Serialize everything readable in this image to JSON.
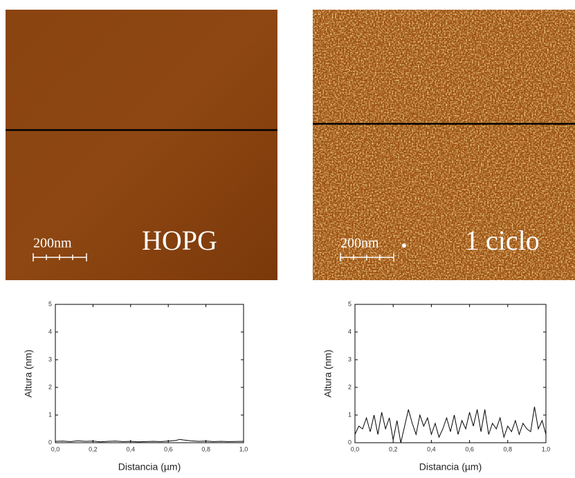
{
  "images": [
    {
      "scale_bar": "200nm",
      "label": "HOPG"
    },
    {
      "scale_bar": "200nm",
      "label": "1 ciclo"
    }
  ],
  "chart_data": [
    {
      "type": "line",
      "xlabel": "Distancia (µm)",
      "ylabel": "Altura (nm)",
      "xlim": [
        0,
        1
      ],
      "ylim": [
        0,
        5
      ],
      "xticks": [
        {
          "value": 0,
          "label": "0,0"
        },
        {
          "value": 0.2,
          "label": "0,2"
        },
        {
          "value": 0.4,
          "label": "0,4"
        },
        {
          "value": 0.6,
          "label": "0,6"
        },
        {
          "value": 0.8,
          "label": "0,8"
        },
        {
          "value": 1,
          "label": "1,0"
        }
      ],
      "yticks": [
        0,
        1,
        2,
        3,
        4,
        5
      ],
      "series": [
        {
          "color": "#000000",
          "x": [
            0,
            0.04,
            0.08,
            0.12,
            0.16,
            0.2,
            0.24,
            0.28,
            0.32,
            0.36,
            0.4,
            0.44,
            0.48,
            0.52,
            0.56,
            0.6,
            0.64,
            0.66,
            0.68,
            0.72,
            0.76,
            0.8,
            0.84,
            0.88,
            0.92,
            1
          ],
          "values": [
            0.05,
            0.06,
            0.04,
            0.07,
            0.05,
            0.06,
            0.03,
            0.05,
            0.06,
            0.04,
            0.05,
            0.03,
            0.04,
            0.05,
            0.04,
            0.06,
            0.08,
            0.12,
            0.1,
            0.07,
            0.05,
            0.06,
            0.04,
            0.05,
            0.04,
            0.05
          ]
        }
      ]
    },
    {
      "type": "line",
      "xlabel": "Distancia (µm)",
      "ylabel": "Altura (nm)",
      "xlim": [
        0,
        1
      ],
      "ylim": [
        0,
        5
      ],
      "xticks": [
        {
          "value": 0,
          "label": "0,0"
        },
        {
          "value": 0.2,
          "label": "0,2"
        },
        {
          "value": 0.4,
          "label": "0,4"
        },
        {
          "value": 0.6,
          "label": "0,6"
        },
        {
          "value": 0.8,
          "label": "0,8"
        },
        {
          "value": 1,
          "label": "1,0"
        }
      ],
      "yticks": [
        0,
        1,
        2,
        3,
        4,
        5
      ],
      "series": [
        {
          "color": "#000000",
          "x": [
            0,
            0.02,
            0.04,
            0.06,
            0.08,
            0.1,
            0.12,
            0.14,
            0.16,
            0.18,
            0.2,
            0.22,
            0.24,
            0.26,
            0.28,
            0.3,
            0.32,
            0.34,
            0.36,
            0.38,
            0.4,
            0.42,
            0.44,
            0.46,
            0.48,
            0.5,
            0.52,
            0.54,
            0.56,
            0.58,
            0.6,
            0.62,
            0.64,
            0.66,
            0.68,
            0.7,
            0.72,
            0.74,
            0.76,
            0.78,
            0.8,
            0.82,
            0.84,
            0.86,
            0.88,
            0.9,
            0.92,
            0.94,
            0.96,
            0.98,
            1
          ],
          "values": [
            0.3,
            0.6,
            0.5,
            0.9,
            0.4,
            1.0,
            0.3,
            1.1,
            0.5,
            0.9,
            0.1,
            0.8,
            0.0,
            0.6,
            1.2,
            0.7,
            0.3,
            1.0,
            0.6,
            0.9,
            0.3,
            0.7,
            0.2,
            0.5,
            0.9,
            0.4,
            1.0,
            0.3,
            0.8,
            0.5,
            1.1,
            0.6,
            1.2,
            0.4,
            1.2,
            0.3,
            0.7,
            0.5,
            0.9,
            0.2,
            0.6,
            0.4,
            0.8,
            0.3,
            0.7,
            0.5,
            0.4,
            1.3,
            0.5,
            0.8,
            0.3
          ]
        }
      ]
    }
  ]
}
